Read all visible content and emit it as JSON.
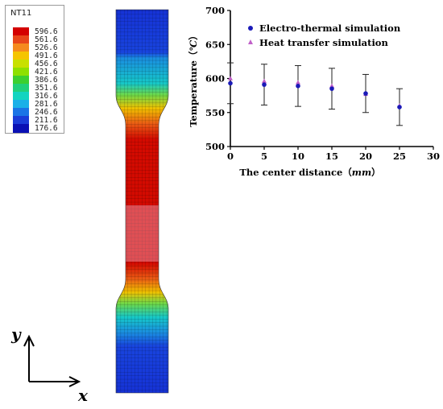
{
  "contour_legend": {
    "title": "NT11",
    "levels": [
      "596.6",
      "561.6",
      "526.6",
      "491.6",
      "456.6",
      "421.6",
      "386.6",
      "351.6",
      "316.6",
      "281.6",
      "246.6",
      "211.6",
      "176.6"
    ],
    "colors": [
      "#d40000",
      "#e8461a",
      "#f58a1e",
      "#f5c400",
      "#c8e000",
      "#8ee000",
      "#3cd030",
      "#20d07a",
      "#12d4c0",
      "#1ab0e8",
      "#1a74e6",
      "#1a3cd8",
      "#0a10b4"
    ]
  },
  "coordinate_axes": {
    "y_label": "y",
    "x_label": "x"
  },
  "chart_data": {
    "type": "scatter",
    "xlabel": "The center distance",
    "xlabel_unit": "mm",
    "ylabel": "Temperature",
    "ylabel_unit": "℃",
    "xlim": [
      0,
      30
    ],
    "ylim": [
      500,
      700
    ],
    "xticks": [
      0,
      5,
      10,
      15,
      20,
      25,
      30
    ],
    "yticks": [
      500,
      550,
      600,
      650,
      700
    ],
    "legend_position": "top-right",
    "series": [
      {
        "name": "Electro-thermal simulation",
        "marker": "circle",
        "color": "#1a1ab8",
        "x": [
          0,
          5,
          10,
          15,
          20,
          25
        ],
        "y": [
          593,
          591,
          589,
          585,
          578,
          558
        ],
        "error": [
          30,
          30,
          30,
          30,
          28,
          27
        ]
      },
      {
        "name": "Heat transfer simulation",
        "marker": "triangle",
        "color": "#c060c8",
        "x": [
          0,
          5,
          10,
          15,
          20,
          25
        ],
        "y": [
          600,
          596,
          594,
          589,
          577,
          560
        ]
      }
    ]
  }
}
